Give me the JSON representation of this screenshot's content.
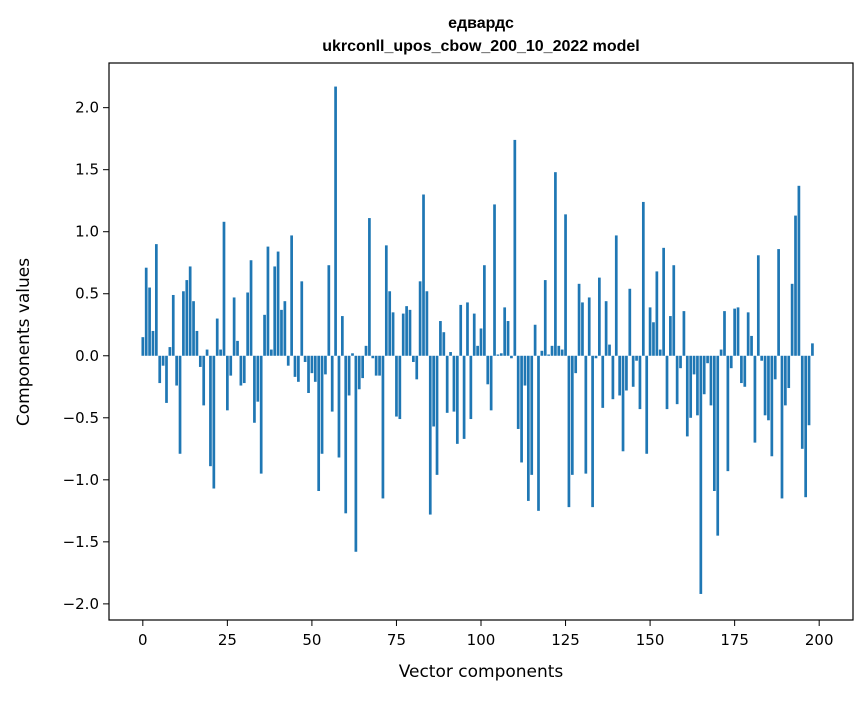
{
  "chart_data": {
    "type": "bar",
    "title": "едвардс",
    "subtitle": "ukrconll_upos_cbow_200_10_2022 model",
    "xlabel": "Vector components",
    "ylabel": "Components values",
    "xlim": [
      -10,
      210
    ],
    "ylim": [
      -2.13,
      2.36
    ],
    "xticks": [
      0,
      25,
      50,
      75,
      100,
      125,
      150,
      175,
      200
    ],
    "yticks": [
      -2.0,
      -1.5,
      -1.0,
      -0.5,
      0.0,
      0.5,
      1.0,
      1.5,
      2.0
    ],
    "ytick_labels": [
      "−2.0",
      "−1.5",
      "−1.0",
      "−0.5",
      "0.0",
      "0.5",
      "1.0",
      "1.5",
      "2.0"
    ],
    "bar_color": "#1f77b4",
    "grid": false,
    "values": [
      0.15,
      0.71,
      0.55,
      0.2,
      0.9,
      -0.22,
      -0.08,
      -0.38,
      0.07,
      0.49,
      -0.24,
      -0.79,
      0.52,
      0.61,
      0.72,
      0.44,
      0.2,
      -0.09,
      -0.4,
      0.05,
      -0.89,
      -1.07,
      0.3,
      0.05,
      1.08,
      -0.44,
      -0.16,
      0.47,
      0.12,
      -0.24,
      -0.22,
      0.51,
      0.77,
      -0.54,
      -0.37,
      -0.95,
      0.33,
      0.88,
      0.05,
      0.72,
      0.84,
      0.37,
      0.44,
      -0.08,
      0.97,
      -0.17,
      -0.21,
      0.6,
      -0.05,
      -0.3,
      -0.14,
      -0.21,
      -1.09,
      -0.79,
      -0.15,
      0.73,
      -0.45,
      2.17,
      -0.82,
      0.32,
      -1.27,
      -0.32,
      0.02,
      -1.58,
      -0.27,
      -0.18,
      0.08,
      1.11,
      -0.02,
      -0.16,
      -0.16,
      -1.15,
      0.89,
      0.52,
      0.35,
      -0.49,
      -0.51,
      0.34,
      0.4,
      0.37,
      -0.05,
      -0.19,
      0.6,
      1.3,
      0.52,
      -1.28,
      -0.57,
      -0.96,
      0.28,
      0.19,
      -0.46,
      0.03,
      -0.45,
      -0.71,
      0.41,
      -0.67,
      0.43,
      -0.51,
      0.34,
      0.08,
      0.22,
      0.73,
      -0.23,
      -0.44,
      1.22,
      0.01,
      0.02,
      0.39,
      0.28,
      -0.02,
      1.74,
      -0.59,
      -0.86,
      -0.24,
      -1.17,
      -0.96,
      0.25,
      -1.25,
      0.04,
      0.61,
      0.01,
      0.08,
      1.48,
      0.08,
      0.05,
      1.14,
      -1.22,
      -0.96,
      -0.14,
      0.58,
      0.43,
      -0.95,
      0.47,
      -1.22,
      -0.02,
      0.63,
      -0.42,
      0.44,
      0.09,
      -0.35,
      0.97,
      -0.32,
      -0.77,
      -0.28,
      0.54,
      -0.25,
      -0.04,
      -0.43,
      1.24,
      -0.79,
      0.39,
      0.27,
      0.68,
      0.05,
      0.87,
      -0.43,
      0.32,
      0.73,
      -0.39,
      -0.1,
      0.36,
      -0.65,
      -0.5,
      -0.15,
      -0.48,
      -1.92,
      -0.31,
      -0.06,
      -0.4,
      -1.09,
      -1.45,
      0.05,
      0.36,
      -0.93,
      -0.1,
      0.38,
      0.39,
      -0.22,
      -0.25,
      0.35,
      0.16,
      -0.7,
      0.81,
      -0.04,
      -0.48,
      -0.52,
      -0.81,
      -0.19,
      0.86,
      -1.15,
      -0.4,
      -0.26,
      0.58,
      1.13,
      1.37,
      -0.75,
      -1.14,
      -0.56,
      0.1
    ]
  }
}
